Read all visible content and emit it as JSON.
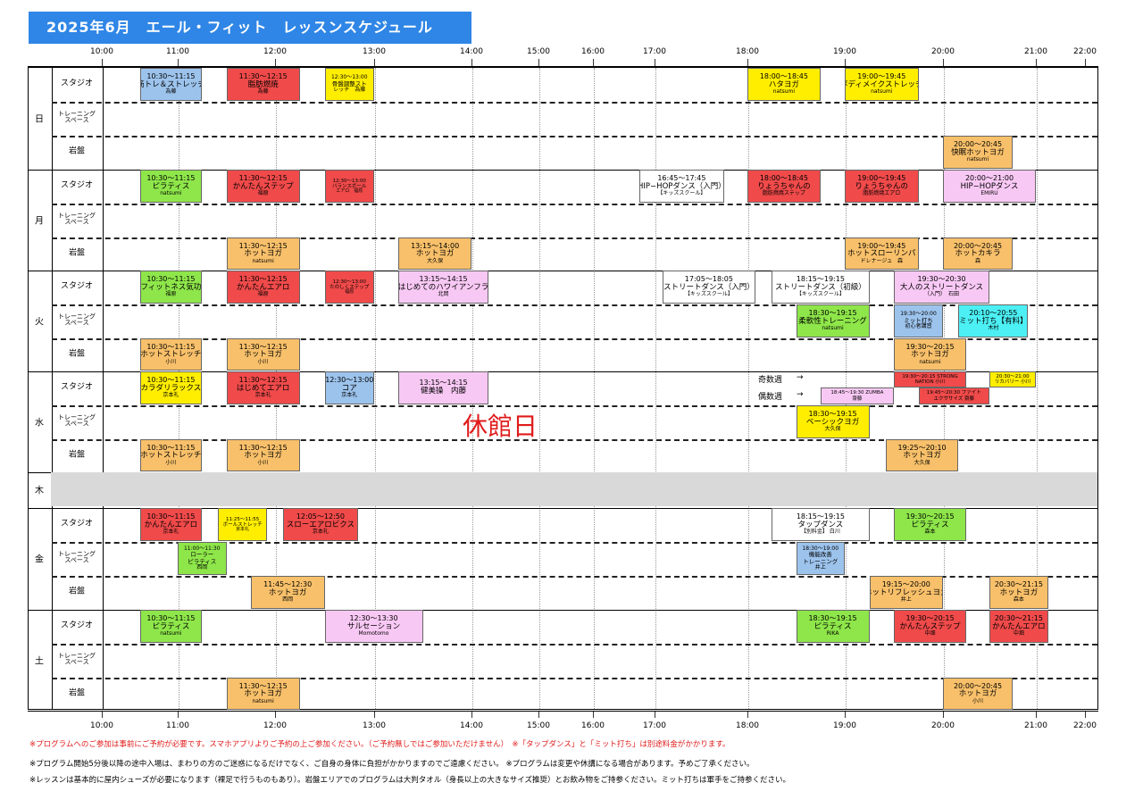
{
  "header": {
    "title": "2025年6月　エール・フィット　レッスンスケジュール"
  },
  "colors": {
    "blue": "#9cc3ec",
    "red": "#f04a4a",
    "yellow": "#ffee00",
    "green": "#8ee64a",
    "orange": "#f8c06a",
    "pink": "#f8c8f4",
    "white": "#ffffff",
    "cyan": "#4cf0f4",
    "header": "#2f86e6"
  },
  "time_axis": [
    "10:00",
    "11:00",
    "12:00",
    "13:00",
    "14:00",
    "15:00",
    "16:00",
    "17:00",
    "18:00",
    "19:00",
    "20:00",
    "21:00",
    "22:00"
  ],
  "row_labels": {
    "studio": "スタジオ",
    "training": "トレーニング\nスペース",
    "ganban": "岩盤"
  },
  "days": [
    "日",
    "月",
    "火",
    "水",
    "木",
    "金",
    "土"
  ],
  "closed_text": "休館日",
  "wednesday_notes": {
    "odd": "奇数週",
    "even": "偶数週",
    "arrow": "→"
  },
  "events": [
    {
      "day": 0,
      "row": "studio",
      "color": "blue",
      "lines": [
        "10:30〜11:15",
        "筋トレ＆ストレッチ",
        "為藤"
      ]
    },
    {
      "day": 0,
      "row": "studio",
      "color": "red",
      "lines": [
        "11:30〜12:15",
        "脂肪燃焼",
        "為藤"
      ]
    },
    {
      "day": 0,
      "row": "studio",
      "color": "yellow",
      "size": "sm",
      "lines": [
        "12:30〜13:00",
        "骨盤調整スト",
        "レッチ　為藤"
      ]
    },
    {
      "day": 0,
      "row": "studio",
      "color": "yellow",
      "lines": [
        "18:00〜18:45",
        "ハタヨガ",
        "natsumi"
      ]
    },
    {
      "day": 0,
      "row": "studio",
      "color": "yellow",
      "lines": [
        "19:00〜19:45",
        "ボディメイクストレッチ",
        "natsumi"
      ]
    },
    {
      "day": 0,
      "row": "ganban",
      "color": "orange",
      "lines": [
        "20:00〜20:45",
        "快眠ホットヨガ",
        "natsumi"
      ]
    },
    {
      "day": 1,
      "row": "studio",
      "color": "green",
      "lines": [
        "10:30〜11:15",
        "ピラティス",
        "natsumi"
      ]
    },
    {
      "day": 1,
      "row": "studio",
      "color": "red",
      "lines": [
        "11:30〜12:15",
        "かんたんステップ",
        "福原"
      ]
    },
    {
      "day": 1,
      "row": "studio",
      "color": "red",
      "size": "xs",
      "lines": [
        "12:30〜13:00",
        "バランスボール",
        "エアロ　福原"
      ]
    },
    {
      "day": 1,
      "row": "studio",
      "color": "white",
      "lines": [
        "16:45〜17:45",
        "HIP−HOPダンス（入門）",
        "【キッズスクール】"
      ]
    },
    {
      "day": 1,
      "row": "studio",
      "color": "red",
      "lines": [
        "18:00〜18:45",
        "りょうちゃんの",
        "脂肪燃焼ステップ"
      ]
    },
    {
      "day": 1,
      "row": "studio",
      "color": "red",
      "lines": [
        "19:00〜19:45",
        "りょうちゃんの",
        "脂肪燃焼エアロ"
      ]
    },
    {
      "day": 1,
      "row": "studio",
      "color": "pink",
      "lines": [
        "20:00〜21:00",
        "HIP−HOPダンス",
        "EMIRU"
      ]
    },
    {
      "day": 1,
      "row": "ganban",
      "color": "orange",
      "lines": [
        "11:30〜12:15",
        "ホットヨガ",
        "natsumi"
      ]
    },
    {
      "day": 1,
      "row": "ganban",
      "color": "orange",
      "lines": [
        "13:15〜14:00",
        "ホットヨガ",
        "大久保"
      ]
    },
    {
      "day": 1,
      "row": "ganban",
      "color": "orange",
      "lines": [
        "19:00〜19:45",
        "ホットスローリンパ",
        "ドレナージュ　森"
      ]
    },
    {
      "day": 1,
      "row": "ganban",
      "color": "orange",
      "lines": [
        "20:00〜20:45",
        "ホットカキラ",
        "森"
      ]
    },
    {
      "day": 2,
      "row": "studio",
      "color": "green",
      "lines": [
        "10:30〜11:15",
        "フィットネス気功",
        "福原"
      ]
    },
    {
      "day": 2,
      "row": "studio",
      "color": "red",
      "lines": [
        "11:30〜12:15",
        "かんたんエアロ",
        "福原"
      ]
    },
    {
      "day": 2,
      "row": "studio",
      "color": "red",
      "size": "xs",
      "lines": [
        "12:30〜13:00",
        "たのしくステップ",
        "福原"
      ]
    },
    {
      "day": 2,
      "row": "studio",
      "color": "pink",
      "lines": [
        "13:15〜14:15",
        "はじめてのハワイアンフラ",
        "北岡"
      ]
    },
    {
      "day": 2,
      "row": "studio",
      "color": "white",
      "lines": [
        "17:05〜18:05",
        "ストリートダンス（入門）",
        "【キッズスクール】"
      ]
    },
    {
      "day": 2,
      "row": "studio",
      "color": "white",
      "lines": [
        "18:15〜19:15",
        "ストリートダンス（初級）",
        "【キッズスクール】"
      ]
    },
    {
      "day": 2,
      "row": "studio",
      "color": "pink",
      "lines": [
        "19:30〜20:30",
        "大人のストリートダンス",
        "（入門）　石田"
      ]
    },
    {
      "day": 2,
      "row": "training",
      "color": "green",
      "lines": [
        "18:30〜19:15",
        "柔軟性トレーニング",
        "natsumi"
      ]
    },
    {
      "day": 2,
      "row": "training",
      "color": "blue",
      "size": "sm",
      "lines": [
        "19:30〜20:00",
        "ミット打ち",
        "初心者講習"
      ]
    },
    {
      "day": 2,
      "row": "training",
      "color": "cyan",
      "lines": [
        "20:10〜20:55",
        "ミット打ち【有料】",
        "木村"
      ]
    },
    {
      "day": 2,
      "row": "ganban",
      "color": "orange",
      "lines": [
        "10:30〜11:15",
        "ホットストレッチ",
        "小川"
      ]
    },
    {
      "day": 2,
      "row": "ganban",
      "color": "orange",
      "lines": [
        "11:30〜12:15",
        "ホットヨガ",
        "小川"
      ]
    },
    {
      "day": 2,
      "row": "ganban",
      "color": "orange",
      "lines": [
        "19:30〜20:15",
        "ホットヨガ",
        "natsumi"
      ]
    },
    {
      "day": 3,
      "row": "studio",
      "color": "yellow",
      "lines": [
        "10:30〜11:15",
        "カラダリラックス",
        "京本礼"
      ]
    },
    {
      "day": 3,
      "row": "studio",
      "color": "red",
      "lines": [
        "11:30〜12:15",
        "はじめてエアロ",
        "京本礼"
      ]
    },
    {
      "day": 3,
      "row": "studio",
      "color": "blue",
      "lines": [
        "12:30〜13:00",
        "コア",
        "京本礼"
      ]
    },
    {
      "day": 3,
      "row": "studio",
      "color": "pink",
      "lines": [
        "13:15〜14:15",
        "健美操　内藤"
      ]
    },
    {
      "day": 3,
      "row": "studio",
      "color": "pink",
      "size": "xs",
      "half": "bottom",
      "lines": [
        "18:45〜19:30 ZUMBA",
        "齋藤"
      ]
    },
    {
      "day": 3,
      "row": "studio",
      "color": "red",
      "size": "xs",
      "half": "top",
      "lines": [
        "19:30〜20:15 STRONG",
        "NATION 小川"
      ]
    },
    {
      "day": 3,
      "row": "studio",
      "color": "red",
      "size": "xs",
      "half": "bottom",
      "lines": [
        "19:45〜20:30 ファイト",
        "エクササイズ 齋藤"
      ]
    },
    {
      "day": 3,
      "row": "studio",
      "color": "yellow",
      "size": "xs",
      "half": "top",
      "lines": [
        "20:30〜21:00",
        "リカバリー 小川"
      ]
    },
    {
      "day": 3,
      "row": "training",
      "color": "yellow",
      "lines": [
        "18:30〜19:15",
        "ベーシックヨガ",
        "大久保"
      ]
    },
    {
      "day": 3,
      "row": "ganban",
      "color": "orange",
      "lines": [
        "10:30〜11:15",
        "ホットストレッチ",
        "小川"
      ]
    },
    {
      "day": 3,
      "row": "ganban",
      "color": "orange",
      "lines": [
        "11:30〜12:15",
        "ホットヨガ",
        "小川"
      ]
    },
    {
      "day": 3,
      "row": "ganban",
      "color": "orange",
      "lines": [
        "19:25〜20:10",
        "ホットヨガ",
        "大久保"
      ]
    },
    {
      "day": 5,
      "row": "studio",
      "color": "red",
      "lines": [
        "10:30〜11:15",
        "かんたんエアロ",
        "京本礼"
      ]
    },
    {
      "day": 5,
      "row": "studio",
      "color": "yellow",
      "size": "xs",
      "lines": [
        "11:25〜11:55",
        "ボールストレッチ",
        "京本礼"
      ]
    },
    {
      "day": 5,
      "row": "studio",
      "color": "red",
      "lines": [
        "12:05〜12:50",
        "スローエアロビクス",
        "京本礼"
      ]
    },
    {
      "day": 5,
      "row": "studio",
      "color": "white",
      "lines": [
        "18:15〜19:15",
        "タップダンス",
        "【別料金】 白川"
      ]
    },
    {
      "day": 5,
      "row": "studio",
      "color": "green",
      "lines": [
        "19:30〜20:15",
        "ピラティス",
        "森本"
      ]
    },
    {
      "day": 5,
      "row": "training",
      "color": "green",
      "size": "sm",
      "lines": [
        "11:00〜11:30",
        "ローラー",
        "ピラティス",
        "西岡"
      ]
    },
    {
      "day": 5,
      "row": "training",
      "color": "blue",
      "size": "sm",
      "lines": [
        "18:30〜19:00",
        "機能改善",
        "トレーニング",
        "井上"
      ]
    },
    {
      "day": 5,
      "row": "ganban",
      "color": "orange",
      "lines": [
        "11:45〜12:30",
        "ホットヨガ",
        "西岡"
      ]
    },
    {
      "day": 5,
      "row": "ganban",
      "color": "orange",
      "lines": [
        "19:15〜20:00",
        "ホットリフレッシュヨガ",
        "井上"
      ]
    },
    {
      "day": 5,
      "row": "ganban",
      "color": "orange",
      "lines": [
        "20:30〜21:15",
        "ホットヨガ",
        "森本"
      ]
    },
    {
      "day": 6,
      "row": "studio",
      "color": "green",
      "lines": [
        "10:30〜11:15",
        "ピラティス",
        "natsumi"
      ]
    },
    {
      "day": 6,
      "row": "studio",
      "color": "pink",
      "lines": [
        "12:30〜13:30",
        "サルセーション",
        "Momotomo"
      ]
    },
    {
      "day": 6,
      "row": "studio",
      "color": "green",
      "lines": [
        "18:30〜19:15",
        "ピラティス",
        "RIKA"
      ]
    },
    {
      "day": 6,
      "row": "studio",
      "color": "red",
      "lines": [
        "19:30〜20:15",
        "かんたんステップ",
        "中畑"
      ]
    },
    {
      "day": 6,
      "row": "studio",
      "color": "red",
      "lines": [
        "20:30〜21:15",
        "かんたんエアロ",
        "中畑"
      ]
    },
    {
      "day": 6,
      "row": "ganban",
      "color": "orange",
      "lines": [
        "11:30〜12:15",
        "ホットヨガ",
        "natsumi"
      ]
    },
    {
      "day": 6,
      "row": "ganban",
      "color": "orange",
      "lines": [
        "20:00〜20:45",
        "ホットヨガ",
        "小川"
      ]
    }
  ],
  "footnotes": [
    "※プログラムへのご参加は事前にご予約が必要です。スマホアプリよりご予約の上ご参加ください。（ご予約無しではご参加いただけません）　※「タップダンス」と「ミット打ち」は別途料金がかかります。",
    "※プログラム開始5分後以降の途中入場は、まわりの方のご迷惑になるだけでなく、ご自身の身体に負担がかかりますのでご遠慮ください。 ※プログラムは変更や休講になる場合があります。予めご了承ください。",
    "※レッスンは基本的に屋内シューズが必要になります（裸足で行うものもあり）。岩盤エリアでのプログラムは大判タオル（身長以上の大きなサイズ推奨）とお飲み物をご持参ください。ミット打ちは軍手をご持参ください。"
  ]
}
